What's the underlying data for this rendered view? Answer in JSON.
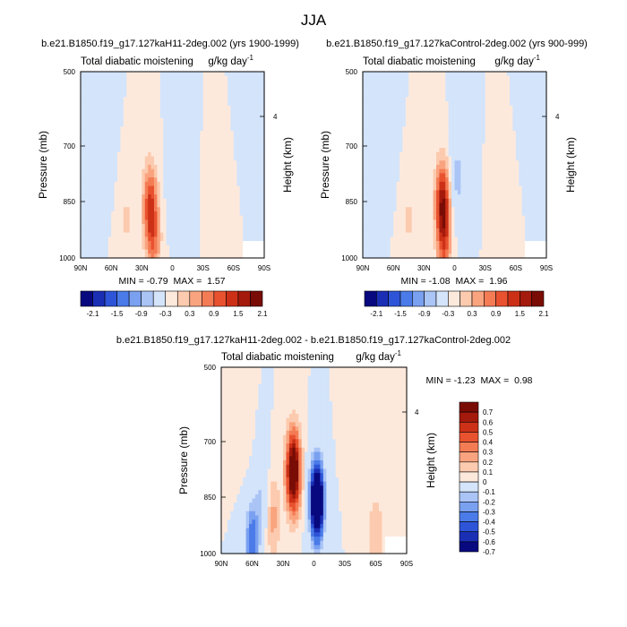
{
  "figure": {
    "title": "JJA"
  },
  "chart_data": [
    {
      "type": "heatmap",
      "title": "b.e21.B1850.f19_g17.127kaH11-2deg.002 (yrs 1900-1999)",
      "left_string": "Total diabatic moistening",
      "right_string": "g/kg day",
      "units_superscript": "-1",
      "ylabel": "Pressure (mb)",
      "y2label": "Height (km)",
      "y2_ticks": [
        "4"
      ],
      "x_tick_labels": [
        "90N",
        "60N",
        "30N",
        "0",
        "30S",
        "60S",
        "90S"
      ],
      "y_tick_labels": [
        "500",
        "700",
        "850",
        "1000"
      ],
      "ylim": [
        1000,
        500
      ],
      "min_max_text": "MIN = -0.79  MAX =  1.57",
      "min_value": -0.79,
      "max_value": 1.57,
      "colorbar_labels": [
        "-2.1",
        "-1.5",
        "-0.9",
        "-0.3",
        "0.3",
        "0.9",
        "1.5",
        "2.1"
      ],
      "colorbar_levels": [
        -2.1,
        -1.8,
        -1.5,
        -1.2,
        -0.9,
        -0.6,
        -0.3,
        0,
        0.3,
        0.6,
        0.9,
        1.2,
        1.5,
        1.8,
        2.1
      ],
      "features": [
        {
          "lat": 22,
          "p": 860,
          "amp": 1.5
        },
        {
          "lat": 18,
          "p": 960,
          "amp": 0.8
        },
        {
          "lat": -3,
          "p": 800,
          "amp": -0.55
        },
        {
          "lat": 45,
          "p": 900,
          "amp": 0.35
        },
        {
          "lat": -50,
          "p": 900,
          "amp": 0.3
        },
        {
          "lat": 65,
          "p": 700,
          "amp": -0.2
        },
        {
          "lat": -75,
          "p": 650,
          "amp": -0.15
        }
      ]
    },
    {
      "type": "heatmap",
      "title": "b.e21.B1850.f19_g17.127kaControl-2deg.002 (yrs 900-999)",
      "left_string": "Total diabatic moistening",
      "right_string": "g/kg day",
      "units_superscript": "-1",
      "ylabel": "Pressure (mb)",
      "y2label": "Height (km)",
      "y2_ticks": [
        "4"
      ],
      "x_tick_labels": [
        "90N",
        "60N",
        "30N",
        "0",
        "30S",
        "60S",
        "90S"
      ],
      "y_tick_labels": [
        "500",
        "700",
        "850",
        "1000"
      ],
      "ylim": [
        1000,
        500
      ],
      "min_max_text": "MIN = -1.08  MAX =  1.96",
      "min_value": -1.08,
      "max_value": 1.96,
      "colorbar_labels": [
        "-2.1",
        "-1.5",
        "-0.9",
        "-0.3",
        "0.3",
        "0.9",
        "1.5",
        "2.1"
      ],
      "colorbar_levels": [
        -2.1,
        -1.8,
        -1.5,
        -1.2,
        -0.9,
        -0.6,
        -0.3,
        0,
        0.3,
        0.6,
        0.9,
        1.2,
        1.5,
        1.8,
        2.1
      ],
      "features": [
        {
          "lat": 12,
          "p": 850,
          "amp": 1.9
        },
        {
          "lat": 10,
          "p": 960,
          "amp": 1.0
        },
        {
          "lat": -3,
          "p": 780,
          "amp": -0.75
        },
        {
          "lat": 45,
          "p": 900,
          "amp": 0.35
        },
        {
          "lat": -50,
          "p": 900,
          "amp": 0.3
        },
        {
          "lat": 65,
          "p": 700,
          "amp": -0.2
        },
        {
          "lat": -75,
          "p": 650,
          "amp": -0.15
        }
      ]
    },
    {
      "type": "heatmap",
      "title": "b.e21.B1850.f19_g17.127kaH11-2deg.002 - b.e21.B1850.f19_g17.127kaControl-2deg.002",
      "left_string": "Total diabatic moistening",
      "right_string": "g/kg day",
      "units_superscript": "-1",
      "ylabel": "Pressure (mb)",
      "y2label": "Height (km)",
      "y2_ticks": [
        "4"
      ],
      "x_tick_labels": [
        "90N",
        "60N",
        "30N",
        "0",
        "30S",
        "60S",
        "90S"
      ],
      "y_tick_labels": [
        "500",
        "700",
        "850",
        "1000"
      ],
      "ylim": [
        1000,
        500
      ],
      "min_max_text": "MIN = -1.23  MAX =  0.98",
      "min_value": -1.23,
      "max_value": 0.98,
      "colorbar_labels": [
        "0.7",
        "0.6",
        "0.5",
        "0.4",
        "0.3",
        "0.2",
        "0.1",
        "0",
        "-0.1",
        "-0.2",
        "-0.3",
        "-0.4",
        "-0.5",
        "-0.6",
        "-0.7"
      ],
      "colorbar_levels": [
        -0.7,
        -0.6,
        -0.5,
        -0.4,
        -0.3,
        -0.2,
        -0.1,
        0,
        0.1,
        0.2,
        0.3,
        0.4,
        0.5,
        0.6,
        0.7
      ],
      "features": [
        {
          "lat": 20,
          "p": 780,
          "amp": 0.95
        },
        {
          "lat": -3,
          "p": 860,
          "amp": -1.2
        },
        {
          "lat": 40,
          "p": 900,
          "amp": 0.25
        },
        {
          "lat": 60,
          "p": 970,
          "amp": -0.5
        },
        {
          "lat": 50,
          "p": 850,
          "amp": -0.2
        },
        {
          "lat": -35,
          "p": 620,
          "amp": 0.1
        },
        {
          "lat": -60,
          "p": 950,
          "amp": 0.2
        },
        {
          "lat": 70,
          "p": 650,
          "amp": 0.1
        }
      ]
    }
  ],
  "colors": {
    "negative": [
      "#08087f",
      "#1b2fb5",
      "#2e55d8",
      "#4a7be8",
      "#7aa0f0",
      "#aac4f6",
      "#d3e4fb"
    ],
    "positive": [
      "#fde9dc",
      "#fccaae",
      "#f9a47f",
      "#f47c55",
      "#e9522f",
      "#cc3117",
      "#a41a0c",
      "#7a0c06"
    ],
    "missing": "#ffffff"
  }
}
